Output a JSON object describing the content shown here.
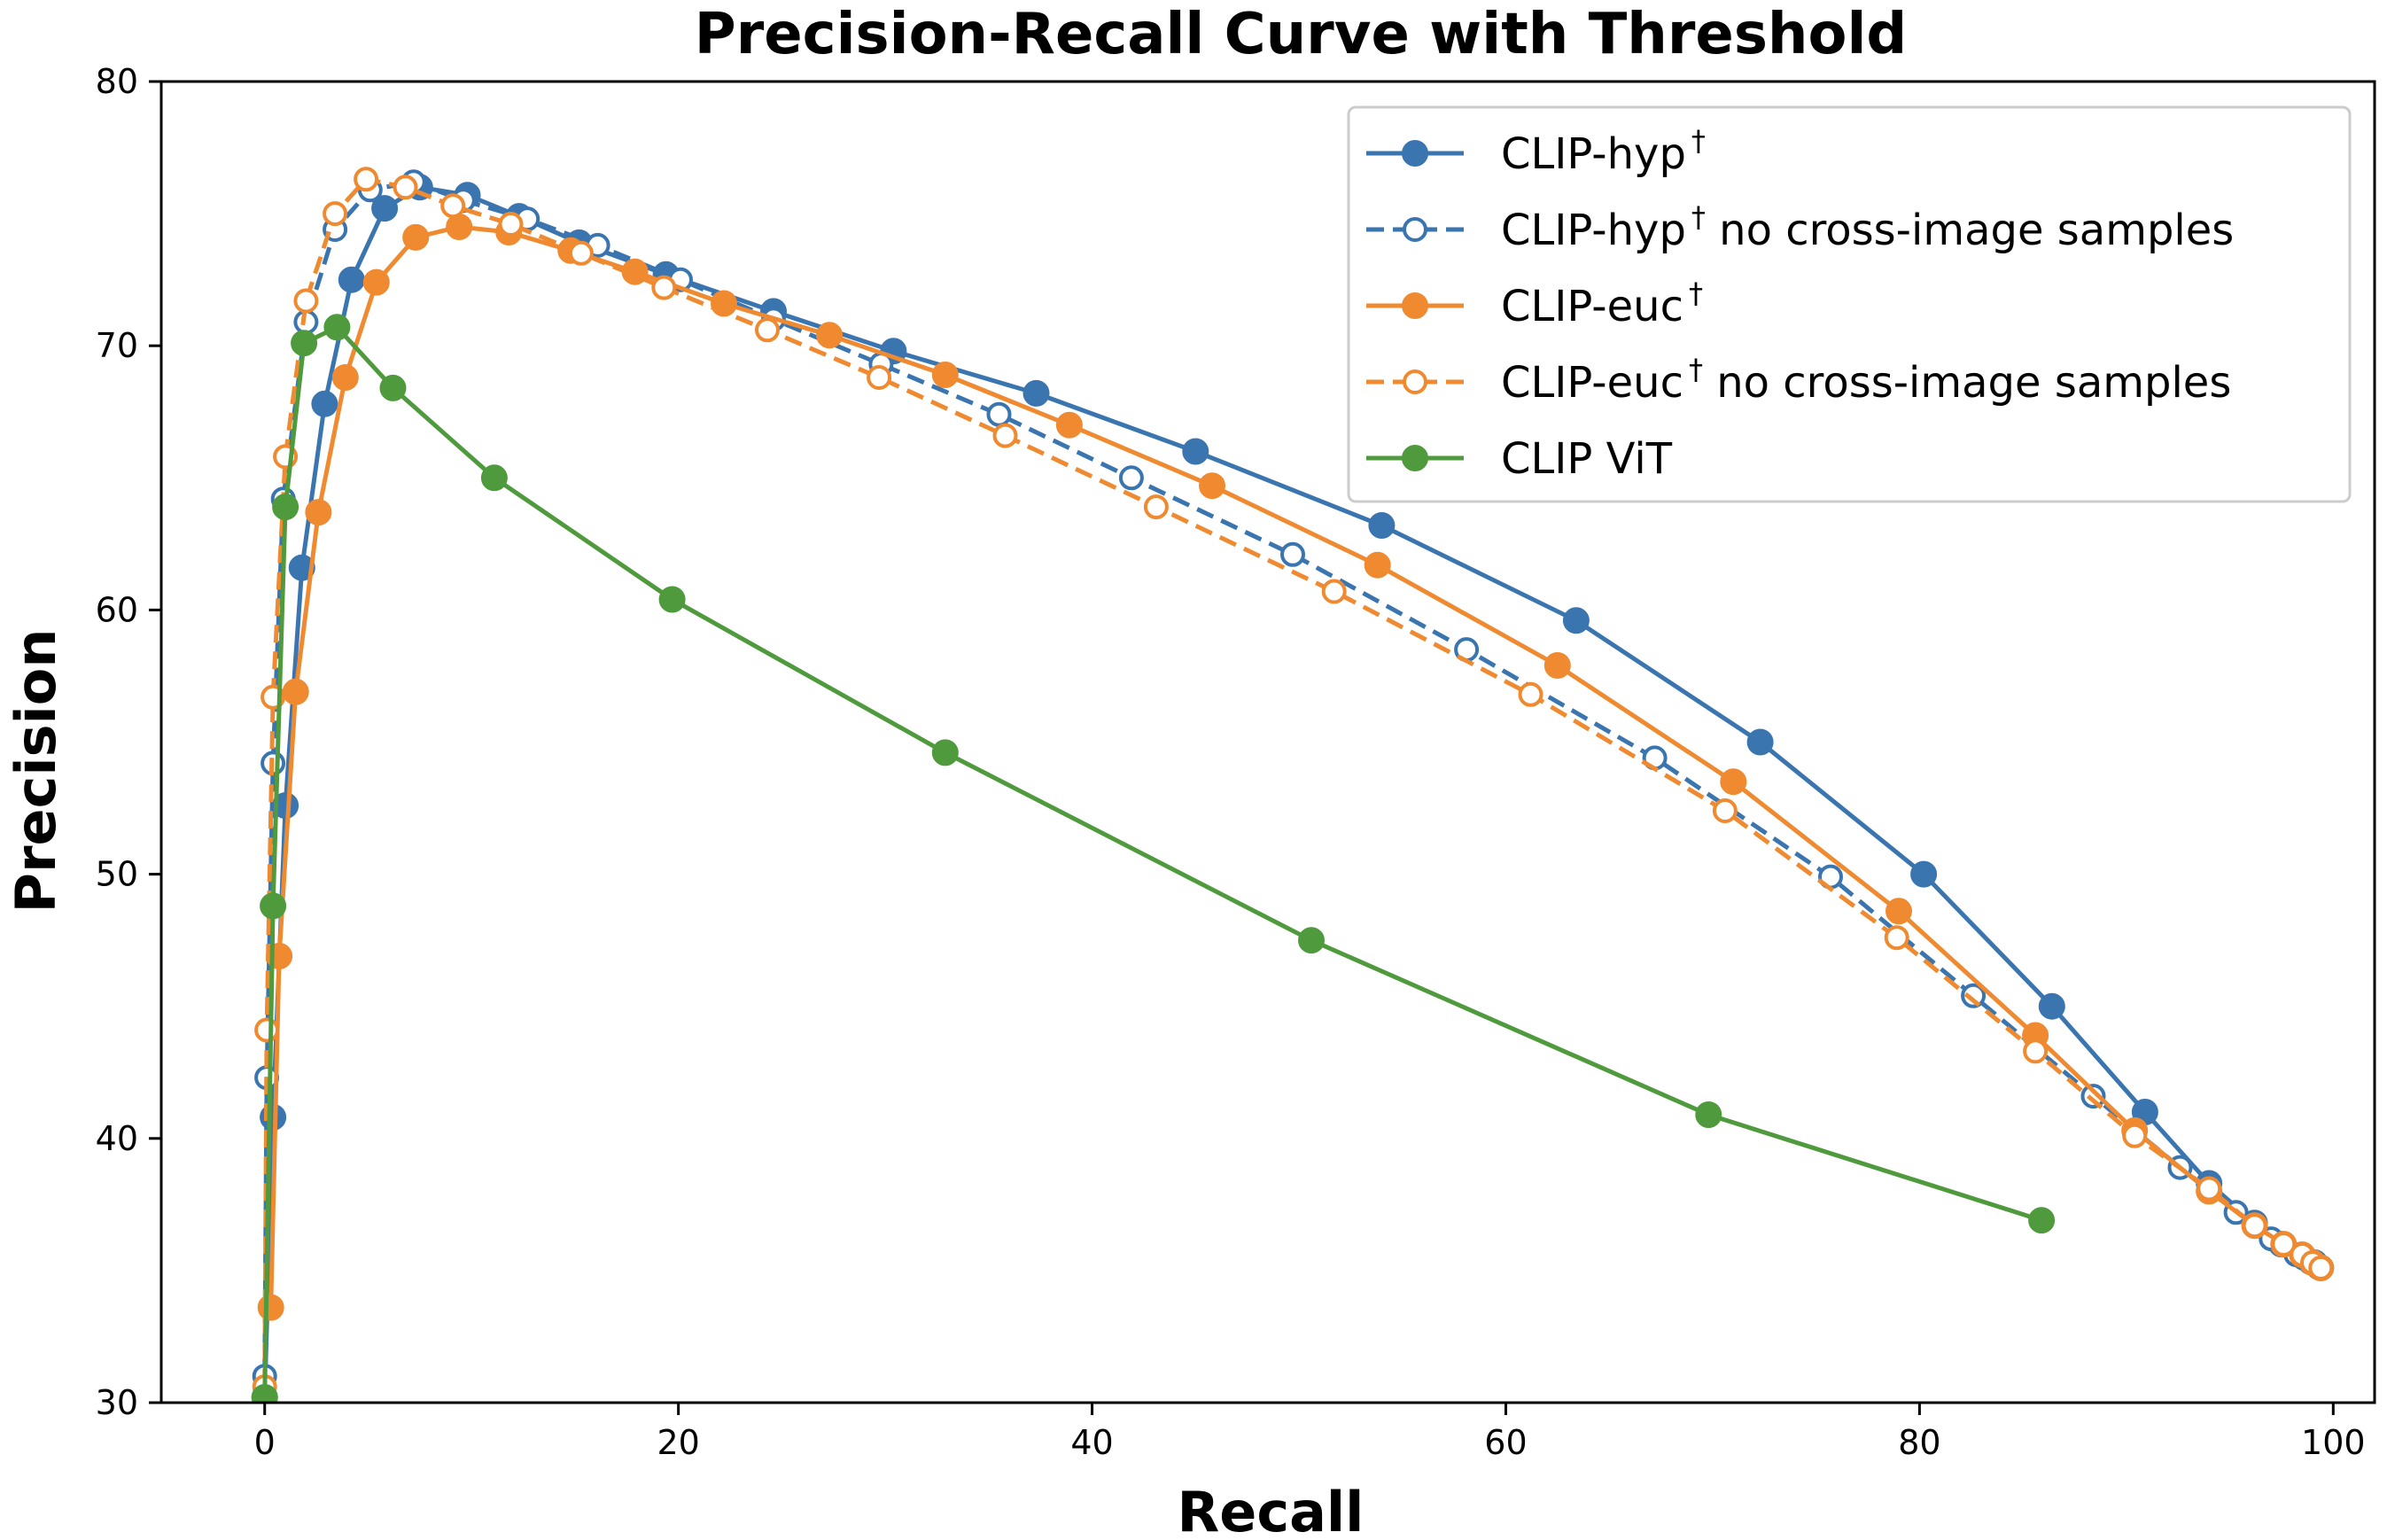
{
  "chart_data": {
    "type": "line",
    "title": "Precision-Recall Curve with Threshold",
    "xlabel": "Recall",
    "ylabel": "Precision",
    "xlim": [
      -5,
      102
    ],
    "ylim": [
      30,
      80
    ],
    "xticks": [
      "0",
      "20",
      "40",
      "60",
      "80",
      "100"
    ],
    "yticks": [
      "30",
      "40",
      "50",
      "60",
      "70",
      "80"
    ],
    "legend_position": "top-right",
    "series": [
      {
        "name": "CLIP-hyp",
        "name_sup": "†",
        "name_suffix": "",
        "color": "#3a75b0",
        "linestyle": "solid",
        "marker": "filled-circle",
        "x": [
          0.0,
          0.4,
          1.0,
          1.8,
          2.9,
          4.2,
          5.8,
          7.5,
          9.8,
          12.3,
          15.2,
          19.4,
          24.6,
          30.4,
          37.3,
          45.0,
          54.0,
          63.4,
          72.3,
          80.2,
          86.4,
          90.9,
          94.0,
          96.2,
          97.5,
          98.6,
          99.1,
          99.4
        ],
        "y": [
          30.2,
          40.8,
          52.6,
          61.6,
          67.8,
          72.5,
          75.2,
          76.0,
          75.7,
          74.9,
          73.9,
          72.7,
          71.3,
          69.8,
          68.2,
          66.0,
          63.2,
          59.6,
          55.0,
          50.0,
          45.0,
          41.0,
          38.3,
          36.8,
          36.0,
          35.5,
          35.3,
          35.1
        ]
      },
      {
        "name": "CLIP-hyp",
        "name_sup": "†",
        "name_suffix": " no cross-image samples",
        "color": "#3a75b0",
        "linestyle": "dashed",
        "marker": "open-circle",
        "x": [
          0.0,
          0.1,
          0.4,
          0.9,
          2.0,
          3.4,
          5.1,
          7.2,
          9.6,
          12.7,
          16.1,
          20.1,
          24.6,
          29.8,
          35.5,
          41.9,
          49.7,
          58.1,
          67.2,
          75.7,
          82.6,
          88.4,
          92.6,
          95.3,
          97.0,
          98.2,
          98.9,
          99.3
        ],
        "y": [
          31.0,
          42.3,
          54.2,
          64.2,
          70.9,
          74.4,
          75.9,
          76.2,
          75.5,
          74.8,
          73.8,
          72.5,
          71.0,
          69.3,
          67.4,
          65.0,
          62.1,
          58.5,
          54.4,
          49.9,
          45.4,
          41.6,
          38.9,
          37.2,
          36.2,
          35.6,
          35.3,
          35.1
        ]
      },
      {
        "name": "CLIP-euc",
        "name_sup": "†",
        "name_suffix": "",
        "color": "#ef8a31",
        "linestyle": "solid",
        "marker": "filled-circle",
        "x": [
          0.3,
          0.7,
          1.5,
          2.6,
          3.9,
          5.4,
          7.3,
          9.4,
          11.8,
          14.8,
          17.9,
          22.2,
          27.3,
          32.9,
          38.9,
          45.8,
          53.8,
          62.5,
          71.0,
          79.0,
          85.6,
          90.4,
          94.0,
          96.2,
          97.6,
          98.5,
          99.0,
          99.4
        ],
        "y": [
          33.6,
          46.9,
          56.9,
          63.7,
          68.8,
          72.4,
          74.1,
          74.5,
          74.3,
          73.6,
          72.8,
          71.6,
          70.4,
          68.9,
          67.0,
          64.7,
          61.7,
          57.9,
          53.5,
          48.6,
          43.9,
          40.3,
          38.0,
          36.7,
          36.0,
          35.6,
          35.3,
          35.1
        ]
      },
      {
        "name": "CLIP-euc",
        "name_sup": "†",
        "name_suffix": " no cross-image samples",
        "color": "#ef8a31",
        "linestyle": "dashed",
        "marker": "open-circle",
        "x": [
          0.0,
          0.1,
          0.4,
          1.0,
          2.0,
          3.4,
          4.9,
          6.8,
          9.1,
          11.9,
          15.3,
          19.3,
          24.3,
          29.7,
          35.8,
          43.1,
          51.7,
          61.2,
          70.6,
          78.9,
          85.6,
          90.4,
          94.0,
          96.2,
          97.6,
          98.5,
          99.0,
          99.4
        ],
        "y": [
          30.6,
          44.1,
          56.7,
          65.8,
          71.7,
          75.0,
          76.3,
          76.0,
          75.3,
          74.6,
          73.5,
          72.2,
          70.6,
          68.8,
          66.6,
          63.9,
          60.7,
          56.8,
          52.4,
          47.6,
          43.3,
          40.1,
          38.1,
          36.7,
          36.0,
          35.6,
          35.3,
          35.1
        ]
      },
      {
        "name": "CLIP ViT",
        "name_sup": "",
        "name_suffix": "",
        "color": "#4e9a3c",
        "linestyle": "solid",
        "marker": "filled-circle",
        "x": [
          0.0,
          0.4,
          1.0,
          1.9,
          3.5,
          6.2,
          11.1,
          19.7,
          32.9,
          50.6,
          69.8,
          85.9
        ],
        "y": [
          30.2,
          48.8,
          63.9,
          70.1,
          70.7,
          68.4,
          65.0,
          60.4,
          54.6,
          47.5,
          40.9,
          36.9
        ]
      }
    ]
  }
}
